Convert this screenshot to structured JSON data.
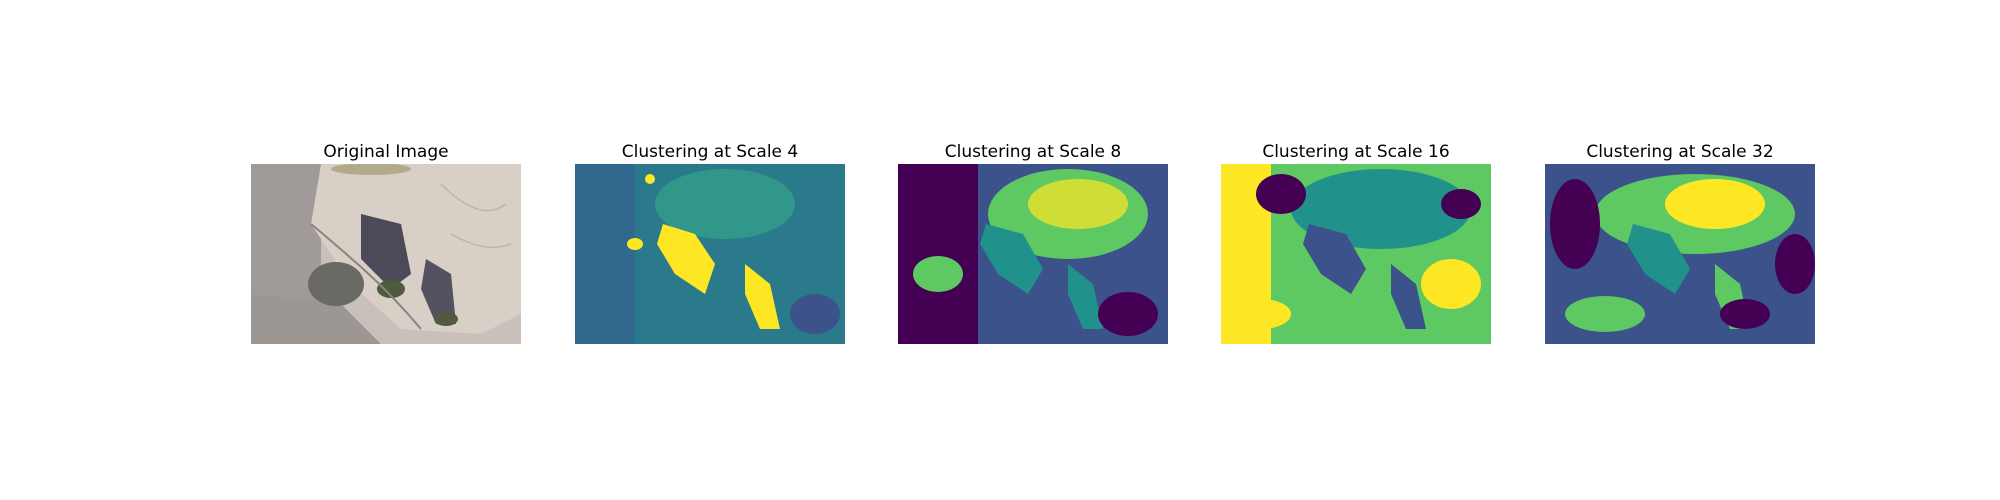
{
  "figure": {
    "panels": [
      {
        "title": "Original Image",
        "kind": "photo"
      },
      {
        "title": "Clustering at Scale 4",
        "kind": "clusters",
        "scale": 4
      },
      {
        "title": "Clustering at Scale 8",
        "kind": "clusters",
        "scale": 8
      },
      {
        "title": "Clustering at Scale 16",
        "kind": "clusters",
        "scale": 16
      },
      {
        "title": "Clustering at Scale 32",
        "kind": "clusters",
        "scale": 32
      }
    ],
    "colormap": [
      "#440154",
      "#3b528b",
      "#21918c",
      "#5ec962",
      "#fde725"
    ]
  }
}
